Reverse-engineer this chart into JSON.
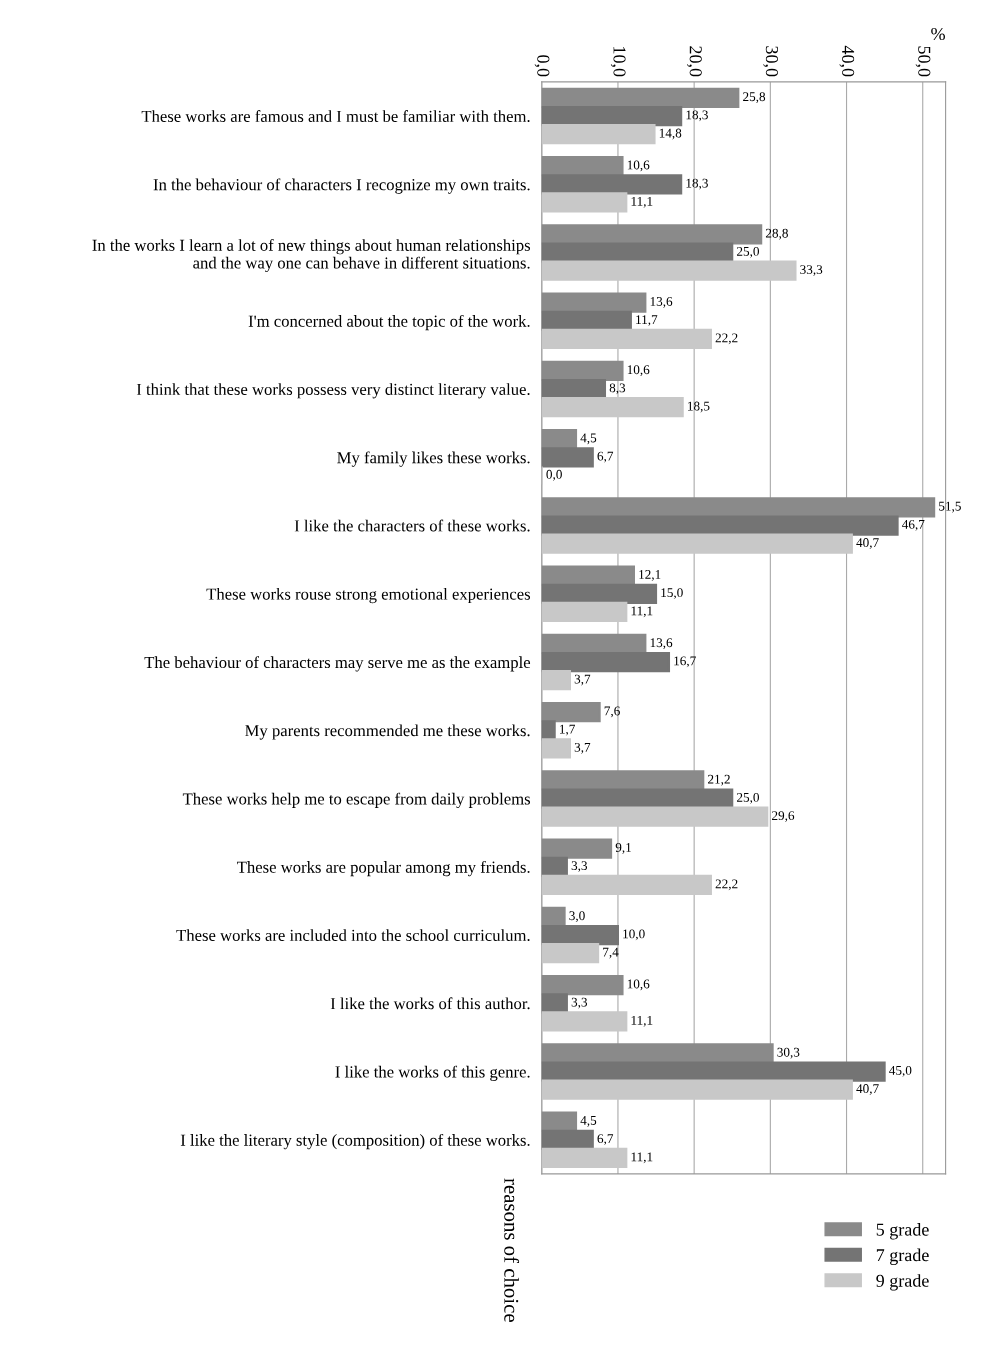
{
  "chart_data": {
    "type": "bar",
    "orientation": "horizontal",
    "xlabel": "%",
    "ylabel": "reasons of choice",
    "categories": [
      "These works are famous and I must be familiar with them.",
      "In the behaviour of characters I recognize my own traits.",
      "In the works I learn a lot of new things about human relationships\nand the way one can behave in different situations.",
      "I'm concerned about the topic of the work.",
      "I think that these works possess very distinct literary value.",
      "My family likes these works.",
      "I like the characters of these works.",
      "These works rouse strong emotional experiences",
      "The behaviour of characters may serve me as the example",
      "My parents recommended me these works.",
      "These works help me to escape from daily problems",
      "These works are popular among my friends.",
      "These works are included into the school curriculum.",
      "I like the works of this author.",
      "I like the works of this genre.",
      "I like the literary style (composition) of these works."
    ],
    "series": [
      {
        "name": "5 grade",
        "color": "#8a8a8a",
        "values": [
          25.8,
          10.6,
          28.8,
          13.6,
          10.6,
          4.5,
          51.5,
          12.1,
          13.6,
          7.6,
          21.2,
          9.1,
          3.0,
          10.6,
          30.3,
          4.5
        ],
        "value_labels": [
          "25,8",
          "10,6",
          "28,8",
          "13,6",
          "10,6",
          "4,5",
          "51,5",
          "12,1",
          "13,6",
          "7,6",
          "21,2",
          "9,1",
          "3,0",
          "10,6",
          "30,3",
          "4,5"
        ]
      },
      {
        "name": "7 grade",
        "color": "#747474",
        "values": [
          18.3,
          18.3,
          25.0,
          11.7,
          8.3,
          6.7,
          46.7,
          15.0,
          16.7,
          1.7,
          25.0,
          3.3,
          10.0,
          3.3,
          45.0,
          6.7
        ],
        "value_labels": [
          "18,3",
          "18,3",
          "25,0",
          "11,7",
          "8,3",
          "6,7",
          "46,7",
          "15,0",
          "16,7",
          "1,7",
          "25,0",
          "3,3",
          "10,0",
          "3,3",
          "45,0",
          "6,7"
        ]
      },
      {
        "name": "9 grade",
        "color": "#c8c8c8",
        "values": [
          14.8,
          11.1,
          33.3,
          22.2,
          18.5,
          0.0,
          40.7,
          11.1,
          3.7,
          3.7,
          29.6,
          22.2,
          7.4,
          11.1,
          40.7,
          11.1
        ],
        "value_labels": [
          "14,8",
          "11,1",
          "33,3",
          "22,2",
          "18,5",
          "0,0",
          "40,7",
          "11,1",
          "3,7",
          "3,7",
          "29,6",
          "22,2",
          "7,4",
          "11,1",
          "40,7",
          "11,1"
        ]
      }
    ],
    "xlim": [
      0,
      53
    ],
    "xticks": [
      {
        "value": 0,
        "label": "0,0"
      },
      {
        "value": 10,
        "label": "10,0"
      },
      {
        "value": 20,
        "label": "20,0"
      },
      {
        "value": 30,
        "label": "30,0"
      },
      {
        "value": 40,
        "label": "40,0"
      },
      {
        "value": 50,
        "label": "50,0"
      }
    ],
    "grid": "x",
    "legend": "bottom right"
  }
}
